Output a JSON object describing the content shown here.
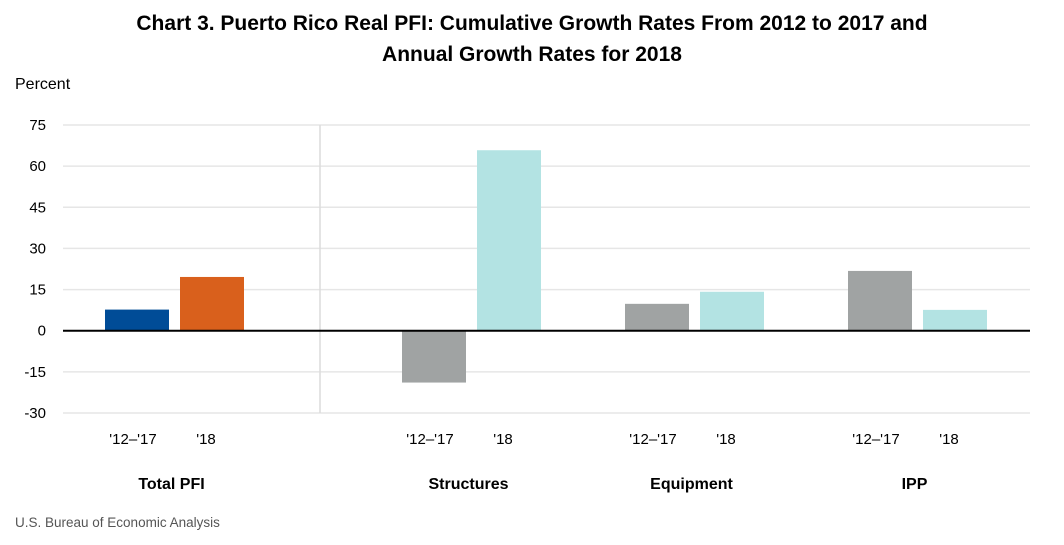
{
  "chart_data": {
    "type": "bar",
    "title_lines": [
      "Chart 3. Puerto Rico Real PFI: Cumulative Growth Rates From 2012 to 2017 and",
      "Annual Growth Rates for 2018"
    ],
    "ylabel": "Percent",
    "ylim": [
      -30,
      75
    ],
    "yticks": [
      75,
      60,
      45,
      30,
      15,
      0,
      -15,
      -30
    ],
    "ytick_labels": [
      "75",
      "60",
      "45",
      "30",
      "15",
      "0",
      "-15",
      "-30"
    ],
    "grid": true,
    "groups": [
      {
        "name": "Total PFI",
        "bars": [
          {
            "label": "'12–'17",
            "value": 7.7,
            "color": "#004C97"
          },
          {
            "label": "'18",
            "value": 19.6,
            "color": "#D9601C"
          }
        ]
      },
      {
        "name": "Structures",
        "bars": [
          {
            "label": "'12–'17",
            "value": -18.9,
            "color": "#A0A3A3"
          },
          {
            "label": "'18",
            "value": 65.8,
            "color": "#B3E3E3"
          }
        ]
      },
      {
        "name": "Equipment",
        "bars": [
          {
            "label": "'12–'17",
            "value": 9.8,
            "color": "#A0A3A3"
          },
          {
            "label": "'18",
            "value": 14.2,
            "color": "#B3E3E3"
          }
        ]
      },
      {
        "name": "IPP",
        "bars": [
          {
            "label": "'12–'17",
            "value": 21.8,
            "color": "#A0A3A3"
          },
          {
            "label": "'18",
            "value": 7.6,
            "color": "#B3E3E3"
          }
        ]
      }
    ]
  },
  "source": "U.S. Bureau of Economic Analysis"
}
